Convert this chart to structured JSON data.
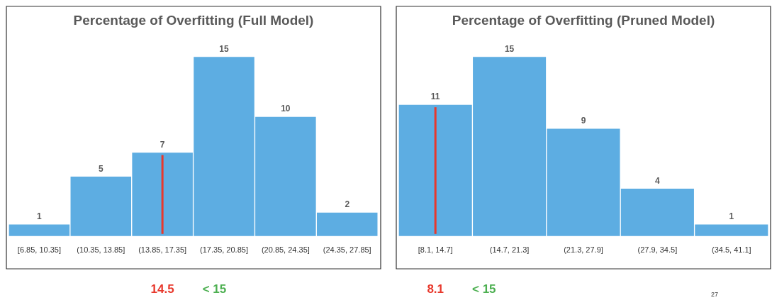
{
  "chart_data": [
    {
      "type": "bar",
      "title": "Percentage of Overfitting (Full Model)",
      "categories": [
        "[6.85, 10.35]",
        "(10.35, 13.85]",
        "(13.85, 17.35]",
        "(17.35, 20.85]",
        "(20.85, 24.35]",
        "(24.35, 27.85]"
      ],
      "values": [
        1,
        5,
        7,
        15,
        10,
        2
      ],
      "color": "#5dade2",
      "tick_labels": "x",
      "data_labels": true,
      "ref_lines": [
        {
          "axis": "x",
          "value": "(13.85, 17.35]",
          "label": "14.5",
          "color": "#e8382c"
        }
      ],
      "annotations": [
        "< 15"
      ]
    },
    {
      "type": "bar",
      "title": "Percentage of Overfitting (Pruned Model)",
      "categories": [
        "[8.1, 14.7]",
        "(14.7, 21.3]",
        "(21.3, 27.9]",
        "(27.9, 34.5]",
        "(34.5, 41.1]"
      ],
      "values": [
        11,
        15,
        9,
        4,
        1
      ],
      "color": "#5dade2",
      "tick_labels": "x",
      "data_labels": true,
      "ref_lines": [
        {
          "axis": "x",
          "value": "[8.1, 14.7]",
          "label": "8.1",
          "color": "#e8382c"
        }
      ],
      "annotations": [
        "< 15",
        "27"
      ]
    }
  ]
}
